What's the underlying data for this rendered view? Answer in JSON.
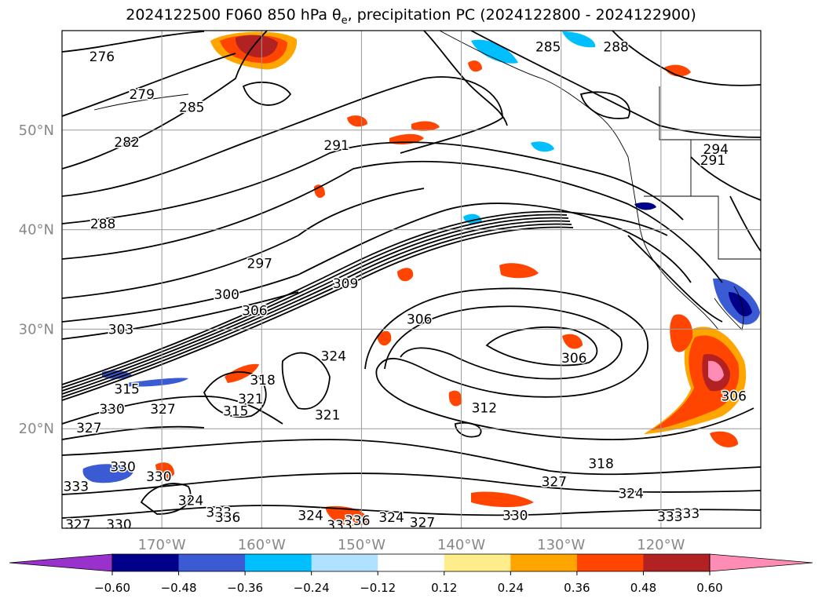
{
  "title": {
    "prefix": "2024122500 F060 850 hPa θ",
    "theta_subscript": "e",
    "suffix": ", precipitation PC (2024122800 - 2024122900)"
  },
  "chart_data": {
    "type": "heatmap",
    "map": {
      "lon_range": [
        -180,
        -110
      ],
      "lat_range": [
        10,
        60
      ],
      "grid": true
    },
    "x_ticks": [
      {
        "value": -170,
        "label": "170°W"
      },
      {
        "value": -160,
        "label": "160°W"
      },
      {
        "value": -150,
        "label": "150°W"
      },
      {
        "value": -140,
        "label": "140°W"
      },
      {
        "value": -130,
        "label": "130°W"
      },
      {
        "value": -120,
        "label": "120°W"
      }
    ],
    "y_ticks": [
      {
        "value": 20,
        "label": "20°N"
      },
      {
        "value": 30,
        "label": "30°N"
      },
      {
        "value": 40,
        "label": "40°N"
      },
      {
        "value": 50,
        "label": "50°N"
      }
    ],
    "colorbar": {
      "extend": "both",
      "levels": [
        -0.6,
        -0.48,
        -0.36,
        -0.24,
        -0.12,
        0.12,
        0.24,
        0.36,
        0.48,
        0.6
      ],
      "tick_labels": [
        "−0.60",
        "−0.48",
        "−0.36",
        "−0.24",
        "−0.12",
        "0.12",
        "0.24",
        "0.36",
        "0.48",
        "0.60"
      ],
      "colors": [
        "#9932CC",
        "#00008B",
        "#3A5BD3",
        "#00BFFF",
        "#B0E2FF",
        "#FFFFFF",
        "#FFEC8B",
        "#FFA500",
        "#FF4500",
        "#B22222",
        "#FF8CB4"
      ]
    },
    "contour_labels": [
      {
        "text": "276",
        "lon": -176,
        "lat": 57.4
      },
      {
        "text": "279",
        "lon": -172,
        "lat": 53.6
      },
      {
        "text": "285",
        "lon": -167,
        "lat": 52.3
      },
      {
        "text": "282",
        "lon": -173.5,
        "lat": 48.8
      },
      {
        "text": "291",
        "lon": -152.5,
        "lat": 48.5
      },
      {
        "text": "288",
        "lon": -175.9,
        "lat": 40.6
      },
      {
        "text": "297",
        "lon": -160.2,
        "lat": 36.6
      },
      {
        "text": "300",
        "lon": -163.5,
        "lat": 33.5
      },
      {
        "text": "303",
        "lon": -174.1,
        "lat": 30.0
      },
      {
        "text": "306",
        "lon": -160.7,
        "lat": 31.9
      },
      {
        "text": "309",
        "lon": -151.6,
        "lat": 34.6
      },
      {
        "text": "324",
        "lon": -152.8,
        "lat": 27.3
      },
      {
        "text": "318",
        "lon": -159.9,
        "lat": 24.9
      },
      {
        "text": "315",
        "lon": -173.5,
        "lat": 24.0
      },
      {
        "text": "321",
        "lon": -161.1,
        "lat": 23.0
      },
      {
        "text": "330",
        "lon": -175.0,
        "lat": 22.0
      },
      {
        "text": "327",
        "lon": -169.9,
        "lat": 22.0
      },
      {
        "text": "315",
        "lon": -162.6,
        "lat": 21.8
      },
      {
        "text": "321",
        "lon": -153.4,
        "lat": 21.4
      },
      {
        "text": "327",
        "lon": -177.3,
        "lat": 20.1
      },
      {
        "text": "306",
        "lon": -144.2,
        "lat": 31.0
      },
      {
        "text": "306",
        "lon": -128.7,
        "lat": 27.1
      },
      {
        "text": "312",
        "lon": -137.7,
        "lat": 22.1
      },
      {
        "text": "306",
        "lon": -112.7,
        "lat": 23.3
      },
      {
        "text": "318",
        "lon": -126.0,
        "lat": 16.5
      },
      {
        "text": "330",
        "lon": -173.9,
        "lat": 16.2
      },
      {
        "text": "330",
        "lon": -170.3,
        "lat": 15.2
      },
      {
        "text": "333",
        "lon": -178.6,
        "lat": 14.2
      },
      {
        "text": "327",
        "lon": -130.7,
        "lat": 14.7
      },
      {
        "text": "324",
        "lon": -123.0,
        "lat": 13.5
      },
      {
        "text": "324",
        "lon": -167.1,
        "lat": 12.8
      },
      {
        "text": "333",
        "lon": -164.3,
        "lat": 11.6
      },
      {
        "text": "336",
        "lon": -163.4,
        "lat": 11.1
      },
      {
        "text": "324",
        "lon": -155.1,
        "lat": 11.3
      },
      {
        "text": "333",
        "lon": -117.4,
        "lat": 11.5
      },
      {
        "text": "333",
        "lon": -119.1,
        "lat": 11.2
      },
      {
        "text": "336",
        "lon": -150.4,
        "lat": 10.8
      },
      {
        "text": "333",
        "lon": -152.2,
        "lat": 10.3
      },
      {
        "text": "324",
        "lon": -147.0,
        "lat": 11.1
      },
      {
        "text": "327",
        "lon": -143.9,
        "lat": 10.6
      },
      {
        "text": "330",
        "lon": -134.6,
        "lat": 11.3
      },
      {
        "text": "327",
        "lon": -178.4,
        "lat": 10.4
      },
      {
        "text": "330",
        "lon": -174.3,
        "lat": 10.4
      },
      {
        "text": "285",
        "lon": -131.3,
        "lat": 58.4
      },
      {
        "text": "288",
        "lon": -124.5,
        "lat": 58.4
      },
      {
        "text": "294",
        "lon": -114.5,
        "lat": 48.1
      },
      {
        "text": "291",
        "lon": -114.8,
        "lat": 47.0
      }
    ]
  }
}
